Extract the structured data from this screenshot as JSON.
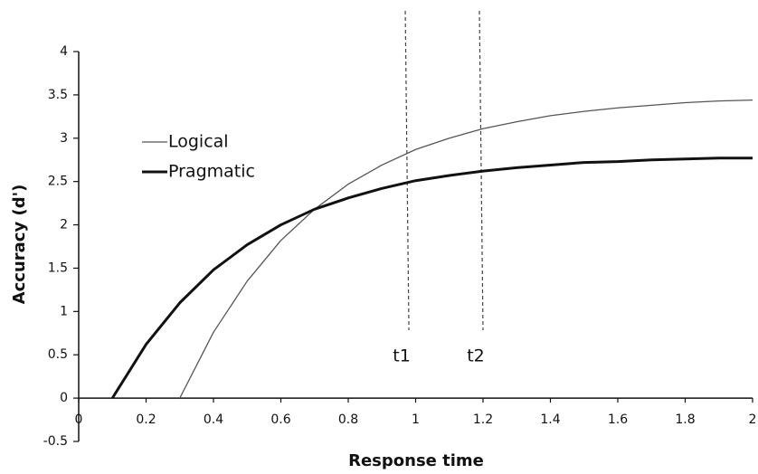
{
  "chart_data": {
    "type": "line",
    "x_label": "Response time",
    "y_label": "Accuracy (d')",
    "x": [
      0.1,
      0.2,
      0.3,
      0.4,
      0.5,
      0.6,
      0.7,
      0.8,
      0.9,
      1.0,
      1.1,
      1.2,
      1.3,
      1.4,
      1.5,
      1.6,
      1.7,
      1.8,
      1.9,
      2.0
    ],
    "series": [
      {
        "name": "Logical",
        "color": "#555555",
        "linewidth": 1.3,
        "values": [
          null,
          null,
          0,
          0.76,
          1.35,
          1.82,
          2.18,
          2.47,
          2.69,
          2.87,
          3.0,
          3.11,
          3.19,
          3.26,
          3.31,
          3.35,
          3.38,
          3.41,
          3.43,
          3.44
        ]
      },
      {
        "name": "Pragmatic",
        "color": "#111111",
        "linewidth": 3,
        "values": [
          0,
          0.62,
          1.1,
          1.48,
          1.77,
          2.0,
          2.18,
          2.31,
          2.42,
          2.51,
          2.57,
          2.62,
          2.66,
          2.69,
          2.72,
          2.73,
          2.75,
          2.76,
          2.77,
          2.77
        ]
      }
    ],
    "annotations": [
      {
        "text": "t1",
        "x": 0.98
      },
      {
        "text": "t2",
        "x": 1.2
      }
    ],
    "xlim": [
      0,
      2
    ],
    "xticks": [
      0,
      0.2,
      0.4,
      0.6,
      0.8,
      1,
      1.2,
      1.4,
      1.6,
      1.8,
      2
    ],
    "ylim": [
      -0.5,
      4
    ],
    "yticks": [
      -0.5,
      0,
      0.5,
      1,
      1.5,
      2,
      2.5,
      3,
      3.5,
      4
    ],
    "grid": false,
    "legend": "upper left"
  }
}
